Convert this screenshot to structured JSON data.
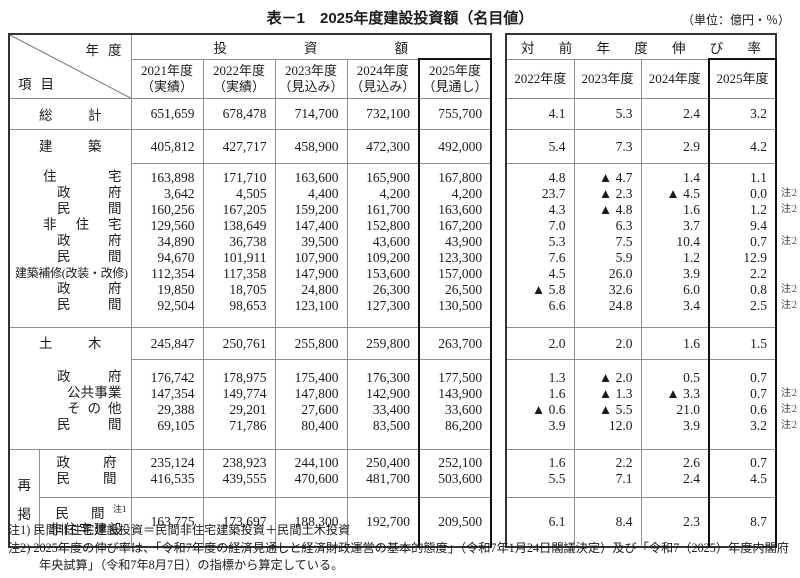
{
  "title": "表－1　2025年度建設投資額（名目値）",
  "unit": "（単位：億円・％）",
  "corner": {
    "top": "年度",
    "bottom": "項目"
  },
  "note2_marker": "注2",
  "tables": {
    "investment": {
      "group_header": "投資額",
      "columns": [
        {
          "year": "2021年度",
          "status": "（実績）"
        },
        {
          "year": "2022年度",
          "status": "（実績）"
        },
        {
          "year": "2023年度",
          "status": "（見込み）"
        },
        {
          "year": "2024年度",
          "status": "（見込み）"
        },
        {
          "year": "2025年度",
          "status": "（見通し）"
        }
      ]
    },
    "growth": {
      "group_header": "対前年度伸び率",
      "columns": [
        "2022年度",
        "2023年度",
        "2024年度",
        "2025年度"
      ]
    }
  },
  "sections": [
    {
      "type": "total",
      "label": "総計",
      "inv": [
        "651,659",
        "678,478",
        "714,700",
        "732,100",
        "755,700"
      ],
      "growth": [
        "4.1",
        "5.3",
        "2.4",
        "3.2"
      ],
      "note2": false
    },
    {
      "type": "group",
      "label": "建築",
      "inv": [
        "405,812",
        "427,717",
        "458,900",
        "472,300",
        "492,000"
      ],
      "growth": [
        "5.4",
        "7.3",
        "2.9",
        "4.2"
      ],
      "note2": false,
      "items": [
        {
          "label": "住宅",
          "indent": 1,
          "inv": [
            "163,898",
            "171,710",
            "163,600",
            "165,900",
            "167,800"
          ],
          "growth": [
            "4.8",
            "▲ 4.7",
            "1.4",
            "1.1"
          ],
          "note2": false
        },
        {
          "label": "政府",
          "indent": 2,
          "inv": [
            "3,642",
            "4,505",
            "4,400",
            "4,200",
            "4,200"
          ],
          "growth": [
            "23.7",
            "▲ 2.3",
            "▲ 4.5",
            "0.0"
          ],
          "note2": true
        },
        {
          "label": "民間",
          "indent": 2,
          "inv": [
            "160,256",
            "167,205",
            "159,200",
            "161,700",
            "163,600"
          ],
          "growth": [
            "4.3",
            "▲ 4.8",
            "1.6",
            "1.2"
          ],
          "note2": true
        },
        {
          "label": "非住宅",
          "indent": 1,
          "inv": [
            "129,560",
            "138,649",
            "147,400",
            "152,800",
            "167,200"
          ],
          "growth": [
            "7.0",
            "6.3",
            "3.7",
            "9.4"
          ],
          "note2": false
        },
        {
          "label": "政府",
          "indent": 2,
          "inv": [
            "34,890",
            "36,738",
            "39,500",
            "43,600",
            "43,900"
          ],
          "growth": [
            "5.3",
            "7.5",
            "10.4",
            "0.7"
          ],
          "note2": true
        },
        {
          "label": "民間",
          "indent": 2,
          "inv": [
            "94,670",
            "101,911",
            "107,900",
            "109,200",
            "123,300"
          ],
          "growth": [
            "7.6",
            "5.9",
            "1.2",
            "12.9"
          ],
          "note2": false
        },
        {
          "label": "建築補修(改装・改修)",
          "indent": 0,
          "inv": [
            "112,354",
            "117,358",
            "147,900",
            "153,600",
            "157,000"
          ],
          "growth": [
            "4.5",
            "26.0",
            "3.9",
            "2.2"
          ],
          "note2": false
        },
        {
          "label": "政府",
          "indent": 2,
          "inv": [
            "19,850",
            "18,705",
            "24,800",
            "26,300",
            "26,500"
          ],
          "growth": [
            "▲ 5.8",
            "32.6",
            "6.0",
            "0.8"
          ],
          "note2": true
        },
        {
          "label": "民間",
          "indent": 2,
          "inv": [
            "92,504",
            "98,653",
            "123,100",
            "127,300",
            "130,500"
          ],
          "growth": [
            "6.6",
            "24.8",
            "3.4",
            "2.5"
          ],
          "note2": true
        }
      ]
    },
    {
      "type": "group",
      "label": "土木",
      "inv": [
        "245,847",
        "250,761",
        "255,800",
        "259,800",
        "263,700"
      ],
      "growth": [
        "2.0",
        "2.0",
        "1.6",
        "1.5"
      ],
      "note2": false,
      "items": [
        {
          "label": "政府",
          "indent": 2,
          "inv": [
            "176,742",
            "178,975",
            "175,400",
            "176,300",
            "177,500"
          ],
          "growth": [
            "1.3",
            "▲ 2.0",
            "0.5",
            "0.7"
          ],
          "note2": false
        },
        {
          "label": "公共事業",
          "indent": 3,
          "inv": [
            "147,354",
            "149,774",
            "147,800",
            "142,900",
            "143,900"
          ],
          "growth": [
            "1.6",
            "▲ 1.3",
            "▲ 3.3",
            "0.7"
          ],
          "note2": true
        },
        {
          "label": "その他",
          "indent": 3,
          "inv": [
            "29,388",
            "29,201",
            "27,600",
            "33,400",
            "33,600"
          ],
          "growth": [
            "▲ 0.6",
            "▲ 5.5",
            "21.0",
            "0.6"
          ],
          "note2": true
        },
        {
          "label": "民間",
          "indent": 2,
          "inv": [
            "69,105",
            "71,786",
            "80,400",
            "83,500",
            "86,200"
          ],
          "growth": [
            "3.9",
            "12.0",
            "3.9",
            "3.2"
          ],
          "note2": true
        }
      ]
    },
    {
      "type": "recap",
      "side_label": "再掲",
      "rows": [
        {
          "label": "政府",
          "inv": [
            "235,124",
            "238,923",
            "244,100",
            "250,400",
            "252,100"
          ],
          "growth": [
            "1.6",
            "2.2",
            "2.6",
            "0.7"
          ],
          "note2": false
        },
        {
          "label": "民間",
          "inv": [
            "416,535",
            "439,555",
            "470,600",
            "481,700",
            "503,600"
          ],
          "growth": [
            "5.5",
            "7.1",
            "2.4",
            "4.5"
          ],
          "note2": false
        }
      ],
      "special": {
        "label_line1": "民間",
        "label_sup": "注1",
        "label_line2": "非住宅建設",
        "inv": [
          "163,775",
          "173,697",
          "188,300",
          "192,700",
          "209,500"
        ],
        "growth": [
          "6.1",
          "8.4",
          "2.3",
          "8.7"
        ],
        "note2": false
      }
    }
  ],
  "footnotes": [
    "注1) 民間非住宅建設投資＝民間非住宅建築投資＋民間土木投資",
    "注2) 2025年度の伸び率は、「令和7年度の経済見通しと経済財政運営の基本的態度」（令和7年1月24日閣議決定）及び「令和7（2025）年度内閣府年央試算」（令和7年8月7日）の指標から算定している。"
  ]
}
